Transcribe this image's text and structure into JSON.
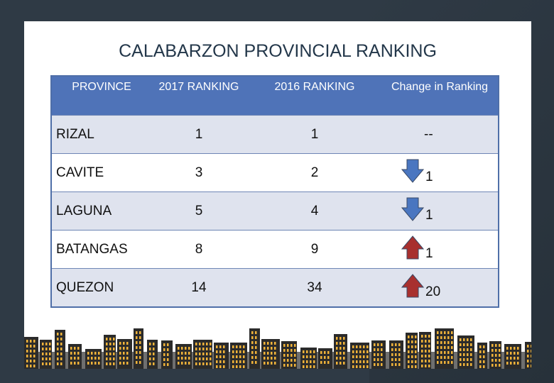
{
  "slide": {
    "title": "CALABARZON PROVINCIAL RANKING"
  },
  "table": {
    "headers": [
      "PROVINCE",
      "2017 RANKING",
      "2016 RANKING",
      "Change in Ranking"
    ],
    "rows": [
      {
        "province": "RIZAL",
        "rank_2017": "1",
        "rank_2016": "1",
        "change": "--",
        "direction": "none"
      },
      {
        "province": "CAVITE",
        "rank_2017": "3",
        "rank_2016": "2",
        "change": "1",
        "direction": "down"
      },
      {
        "province": "LAGUNA",
        "rank_2017": "5",
        "rank_2016": "4",
        "change": "1",
        "direction": "down"
      },
      {
        "province": "BATANGAS",
        "rank_2017": "8",
        "rank_2016": "9",
        "change": "1",
        "direction": "up"
      },
      {
        "province": "QUEZON",
        "rank_2017": "14",
        "rank_2016": "34",
        "change": "20",
        "direction": "up"
      }
    ]
  },
  "colors": {
    "header_bg": "#4f73b8",
    "row_alt_bg": "#dfe3ee",
    "title_color": "#23374a",
    "arrow_down": "#4a76c0",
    "arrow_up": "#a8302e",
    "skyline_dark": "#2b2b2b",
    "skyline_window": "#f0b33a"
  },
  "icons": {
    "down": "arrow-down-icon",
    "up": "arrow-up-icon"
  }
}
